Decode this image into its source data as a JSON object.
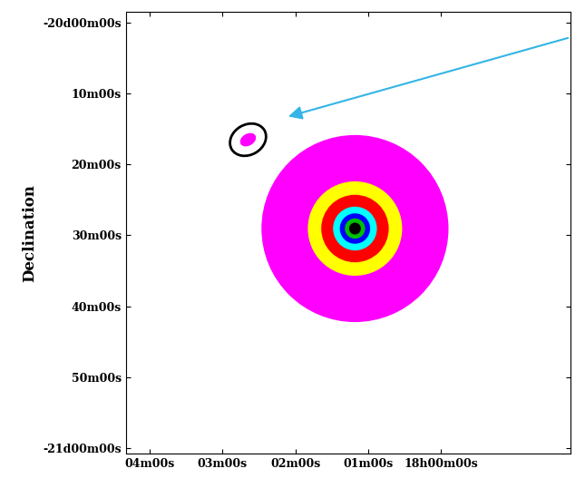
{
  "chart_data": {
    "type": "sky_map",
    "y_label": "Declination",
    "xlim": [
      4.33,
      -1.78
    ],
    "xticks": [
      {
        "value": 4,
        "label": "04m00s"
      },
      {
        "value": 3,
        "label": "03m00s"
      },
      {
        "value": 2,
        "label": "02m00s"
      },
      {
        "value": 1,
        "label": "01m00s"
      },
      {
        "value": 0,
        "label": "18h00m00s"
      }
    ],
    "ylim": [
      -21.014,
      -19.975
    ],
    "yticks": [
      {
        "value": -20.0,
        "label": "-20d00m00s"
      },
      {
        "value": -20.1667,
        "label": "10m00s"
      },
      {
        "value": -20.3333,
        "label": "20m00s"
      },
      {
        "value": -20.5,
        "label": "30m00s"
      },
      {
        "value": -20.6667,
        "label": "40m00s"
      },
      {
        "value": -20.8333,
        "label": "50m00s"
      },
      {
        "value": -21.0,
        "label": "-21d00m00s"
      }
    ],
    "cluster": {
      "x": 1.18,
      "y": -20.484,
      "rings": [
        {
          "color": "#ff00ff",
          "radius": 0.22
        },
        {
          "color": "#ffff00",
          "radius": 0.111
        },
        {
          "color": "#ff0000",
          "radius": 0.0794
        },
        {
          "color": "#00ffff",
          "radius": 0.0516
        },
        {
          "color": "#0000ff",
          "radius": 0.0357
        },
        {
          "color": "#00c000",
          "radius": 0.0238
        },
        {
          "color": "#000000",
          "radius": 0.0139
        }
      ]
    },
    "source": {
      "x": 2.65,
      "y": -20.275,
      "color": "#ff00ff",
      "width": 0.04,
      "height": 0.028
    },
    "region": {
      "x": 2.65,
      "y": -20.275,
      "color": "#000000",
      "width": 0.089,
      "height": 0.071
    },
    "arrow": {
      "color": "#33b5e5",
      "from": [
        -1.78,
        -20.034
      ],
      "to": [
        2.13,
        -20.222
      ]
    }
  }
}
